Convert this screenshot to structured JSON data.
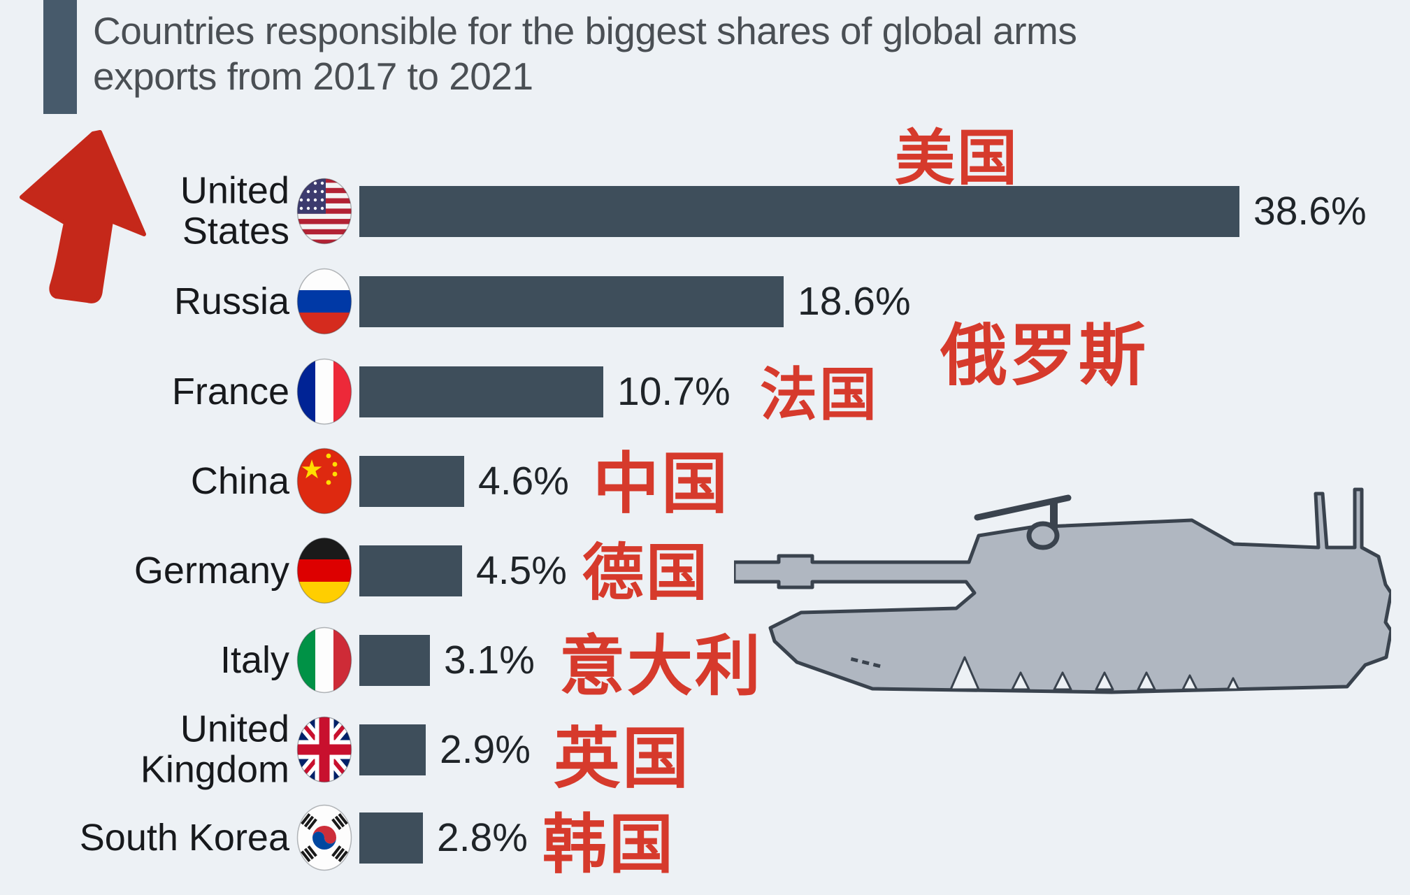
{
  "title": {
    "line1": "Countries responsible for the biggest shares of global arms",
    "line2": "exports from 2017 to 2021"
  },
  "chart_data": {
    "type": "bar",
    "orientation": "horizontal",
    "title": "Countries responsible for the biggest shares of global arms exports from 2017 to 2021",
    "categories": [
      "United States",
      "Russia",
      "France",
      "China",
      "Germany",
      "Italy",
      "United Kingdom",
      "South Korea"
    ],
    "display_labels": [
      "United\nStates",
      "Russia",
      "France",
      "China",
      "Germany",
      "Italy",
      "United\nKingdom",
      "South Korea"
    ],
    "values": [
      38.6,
      18.6,
      10.7,
      4.6,
      4.5,
      3.1,
      2.9,
      2.8
    ],
    "value_labels": [
      "38.6%",
      "18.6%",
      "10.7%",
      "4.6%",
      "4.5%",
      "3.1%",
      "2.9%",
      "2.8%"
    ],
    "annotations": [
      "美国",
      "俄罗斯",
      "法国",
      "中国",
      "德国",
      "意大利",
      "英国",
      "韩国"
    ],
    "flags": [
      "us",
      "russia",
      "france",
      "china",
      "germany",
      "italy",
      "uk",
      "south-korea"
    ],
    "x_range": [
      0,
      40
    ],
    "grid": false,
    "legend": false,
    "bar_color": "#3e4e5b",
    "annotation_color": "#d63a2c",
    "unit": "%"
  },
  "decorations": {
    "arrow_icon": "red-marker-arrow",
    "tank_icon": "tank-silhouette"
  },
  "colors": {
    "background": "#edf1f5",
    "accent_bar": "#475a6b",
    "title_text": "#4a4f54",
    "bar": "#3e4e5b",
    "red": "#d63a2c",
    "tank_fill": "#b0b7c1",
    "tank_outline": "#3a434e"
  }
}
